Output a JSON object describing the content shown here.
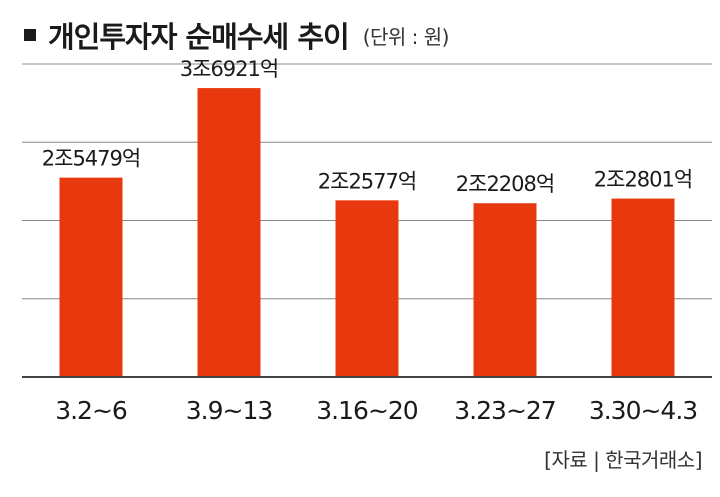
{
  "header": {
    "title": "개인투자자 순매수세 추이",
    "unit": "(단위 : 원)"
  },
  "source": "[자료 | 한국거래소]",
  "colors": {
    "bar": "#e8380d",
    "grid": "#888888",
    "axis": "#444444",
    "text": "#1a1a1a"
  },
  "chart_data": {
    "type": "bar",
    "title": "개인투자자 순매수세 추이",
    "unit": "(단위 : 원)",
    "categories": [
      "3.2~6",
      "3.9~13",
      "3.16~20",
      "3.23~27",
      "3.30~4.3"
    ],
    "values": [
      25479,
      36921,
      22577,
      22208,
      22801
    ],
    "value_unit": "억 원",
    "data_labels": [
      "2조5479억",
      "3조6921억",
      "2조2577억",
      "2조2208억",
      "2조2801억"
    ],
    "ylim": [
      0,
      40000
    ],
    "grid": true,
    "xlabel": "",
    "ylabel": ""
  }
}
